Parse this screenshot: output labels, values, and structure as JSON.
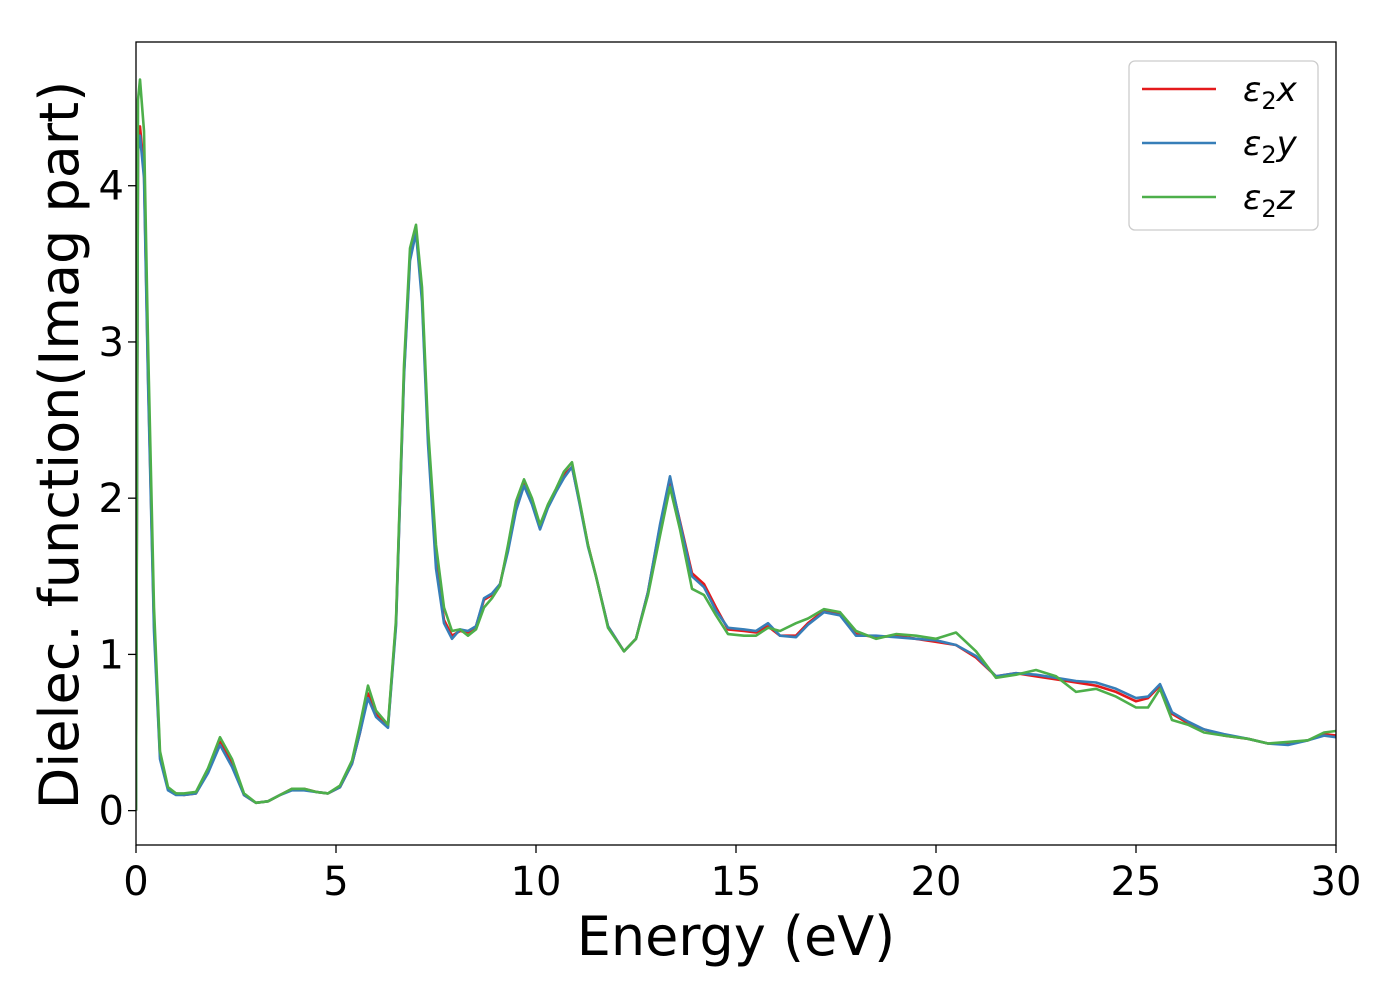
{
  "chart_data": {
    "type": "line",
    "xlabel": "Energy (eV)",
    "ylabel": "Dielec. function(Imag part)",
    "xlim": [
      0,
      30
    ],
    "ylim": [
      -0.22,
      4.92
    ],
    "xticks": [
      0,
      5,
      10,
      15,
      20,
      25,
      30
    ],
    "yticks": [
      0,
      1,
      2,
      3,
      4
    ],
    "legend_position": "top-right",
    "grid": false,
    "series": [
      {
        "name": "ε2x",
        "legend_main": "ε",
        "legend_sub": "2",
        "legend_tail": "x",
        "color": "#e41a1c",
        "x": [
          0,
          0.05,
          0.1,
          0.2,
          0.3,
          0.45,
          0.6,
          0.8,
          1.0,
          1.2,
          1.5,
          1.8,
          2.1,
          2.4,
          2.7,
          3.0,
          3.3,
          3.6,
          3.9,
          4.2,
          4.5,
          4.8,
          5.1,
          5.4,
          5.6,
          5.8,
          6.0,
          6.3,
          6.5,
          6.7,
          6.85,
          7.0,
          7.15,
          7.3,
          7.5,
          7.7,
          7.9,
          8.1,
          8.3,
          8.5,
          8.7,
          8.9,
          9.1,
          9.3,
          9.5,
          9.7,
          9.9,
          10.1,
          10.3,
          10.5,
          10.7,
          10.9,
          11.1,
          11.3,
          11.5,
          11.8,
          12.2,
          12.5,
          12.8,
          13.1,
          13.35,
          13.6,
          13.9,
          14.2,
          14.5,
          14.8,
          15.2,
          15.5,
          15.8,
          16.1,
          16.5,
          16.8,
          17.2,
          17.6,
          18.0,
          18.5,
          19.0,
          19.5,
          20.0,
          20.5,
          21.0,
          21.5,
          22.0,
          22.5,
          23.0,
          23.5,
          24.0,
          24.5,
          25.0,
          25.3,
          25.6,
          25.9,
          26.3,
          26.7,
          27.2,
          27.8,
          28.3,
          28.8,
          29.3,
          29.7,
          30.0
        ],
        "y": [
          0,
          4.3,
          4.38,
          4.1,
          2.8,
          1.2,
          0.35,
          0.14,
          0.11,
          0.1,
          0.11,
          0.25,
          0.44,
          0.3,
          0.1,
          0.05,
          0.06,
          0.1,
          0.14,
          0.14,
          0.12,
          0.11,
          0.15,
          0.3,
          0.5,
          0.75,
          0.62,
          0.54,
          1.2,
          2.8,
          3.55,
          3.72,
          3.3,
          2.4,
          1.6,
          1.22,
          1.12,
          1.15,
          1.14,
          1.18,
          1.35,
          1.38,
          1.45,
          1.68,
          1.95,
          2.1,
          1.98,
          1.82,
          1.95,
          2.05,
          2.15,
          2.2,
          1.96,
          1.7,
          1.5,
          1.18,
          1.02,
          1.1,
          1.4,
          1.82,
          2.12,
          1.85,
          1.52,
          1.45,
          1.3,
          1.16,
          1.15,
          1.14,
          1.18,
          1.12,
          1.12,
          1.2,
          1.28,
          1.26,
          1.13,
          1.11,
          1.12,
          1.1,
          1.08,
          1.06,
          0.98,
          0.86,
          0.88,
          0.86,
          0.84,
          0.82,
          0.8,
          0.76,
          0.7,
          0.72,
          0.8,
          0.62,
          0.56,
          0.52,
          0.48,
          0.46,
          0.43,
          0.43,
          0.45,
          0.49,
          0.48
        ]
      },
      {
        "name": "ε2y",
        "legend_main": "ε",
        "legend_sub": "2",
        "legend_tail": "y",
        "color": "#377eb8",
        "x": [
          0,
          0.05,
          0.1,
          0.2,
          0.3,
          0.45,
          0.6,
          0.8,
          1.0,
          1.2,
          1.5,
          1.8,
          2.1,
          2.4,
          2.7,
          3.0,
          3.3,
          3.6,
          3.9,
          4.2,
          4.5,
          4.8,
          5.1,
          5.4,
          5.6,
          5.8,
          6.0,
          6.3,
          6.5,
          6.7,
          6.85,
          7.0,
          7.15,
          7.3,
          7.5,
          7.7,
          7.9,
          8.1,
          8.3,
          8.5,
          8.7,
          8.9,
          9.1,
          9.3,
          9.5,
          9.7,
          9.9,
          10.1,
          10.3,
          10.5,
          10.7,
          10.9,
          11.1,
          11.3,
          11.5,
          11.8,
          12.2,
          12.5,
          12.8,
          13.1,
          13.35,
          13.6,
          13.9,
          14.2,
          14.5,
          14.8,
          15.2,
          15.5,
          15.8,
          16.1,
          16.5,
          16.8,
          17.2,
          17.6,
          18.0,
          18.5,
          19.0,
          19.5,
          20.0,
          20.5,
          21.0,
          21.5,
          22.0,
          22.5,
          23.0,
          23.5,
          24.0,
          24.5,
          25.0,
          25.3,
          25.6,
          25.9,
          26.3,
          26.7,
          27.2,
          27.8,
          28.3,
          28.8,
          29.3,
          29.7,
          30.0
        ],
        "y": [
          0,
          4.22,
          4.32,
          4.05,
          2.75,
          1.15,
          0.33,
          0.13,
          0.1,
          0.1,
          0.11,
          0.24,
          0.42,
          0.28,
          0.1,
          0.05,
          0.06,
          0.1,
          0.13,
          0.13,
          0.12,
          0.11,
          0.15,
          0.3,
          0.5,
          0.72,
          0.6,
          0.53,
          1.18,
          2.78,
          3.52,
          3.7,
          3.26,
          2.35,
          1.55,
          1.2,
          1.1,
          1.16,
          1.15,
          1.18,
          1.36,
          1.39,
          1.45,
          1.66,
          1.92,
          2.08,
          1.96,
          1.8,
          1.94,
          2.04,
          2.13,
          2.2,
          1.95,
          1.69,
          1.5,
          1.18,
          1.02,
          1.1,
          1.4,
          1.83,
          2.14,
          1.84,
          1.5,
          1.43,
          1.28,
          1.17,
          1.16,
          1.15,
          1.2,
          1.12,
          1.11,
          1.19,
          1.27,
          1.25,
          1.12,
          1.12,
          1.11,
          1.1,
          1.09,
          1.06,
          0.99,
          0.86,
          0.88,
          0.87,
          0.85,
          0.83,
          0.82,
          0.78,
          0.72,
          0.73,
          0.81,
          0.63,
          0.57,
          0.52,
          0.49,
          0.46,
          0.43,
          0.42,
          0.45,
          0.48,
          0.47
        ]
      },
      {
        "name": "ε2z",
        "legend_main": "ε",
        "legend_sub": "2",
        "legend_tail": "z",
        "color": "#4daf4a",
        "x": [
          0,
          0.05,
          0.1,
          0.2,
          0.3,
          0.45,
          0.6,
          0.8,
          1.0,
          1.2,
          1.5,
          1.8,
          2.1,
          2.4,
          2.7,
          3.0,
          3.3,
          3.6,
          3.9,
          4.2,
          4.5,
          4.8,
          5.1,
          5.4,
          5.6,
          5.8,
          6.0,
          6.3,
          6.5,
          6.7,
          6.85,
          7.0,
          7.15,
          7.3,
          7.5,
          7.7,
          7.9,
          8.1,
          8.3,
          8.5,
          8.7,
          8.9,
          9.1,
          9.3,
          9.5,
          9.7,
          9.9,
          10.1,
          10.3,
          10.5,
          10.7,
          10.9,
          11.1,
          11.3,
          11.5,
          11.8,
          12.2,
          12.5,
          12.8,
          13.1,
          13.35,
          13.6,
          13.9,
          14.2,
          14.5,
          14.8,
          15.2,
          15.5,
          15.8,
          16.1,
          16.5,
          16.8,
          17.2,
          17.6,
          18.0,
          18.5,
          19.0,
          19.5,
          20.0,
          20.5,
          21.0,
          21.5,
          22.0,
          22.5,
          23.0,
          23.5,
          24.0,
          24.5,
          25.0,
          25.3,
          25.6,
          25.9,
          26.3,
          26.7,
          27.2,
          27.8,
          28.3,
          28.8,
          29.3,
          29.7,
          30.0
        ],
        "y": [
          0,
          4.55,
          4.68,
          4.35,
          3.0,
          1.3,
          0.38,
          0.15,
          0.11,
          0.11,
          0.12,
          0.27,
          0.47,
          0.33,
          0.11,
          0.05,
          0.06,
          0.1,
          0.14,
          0.14,
          0.12,
          0.11,
          0.16,
          0.32,
          0.55,
          0.8,
          0.64,
          0.55,
          1.22,
          2.85,
          3.6,
          3.75,
          3.35,
          2.45,
          1.7,
          1.3,
          1.15,
          1.16,
          1.12,
          1.16,
          1.3,
          1.36,
          1.44,
          1.7,
          1.98,
          2.12,
          2.0,
          1.83,
          1.96,
          2.06,
          2.17,
          2.23,
          1.97,
          1.7,
          1.5,
          1.17,
          1.02,
          1.1,
          1.38,
          1.76,
          2.07,
          1.8,
          1.42,
          1.38,
          1.25,
          1.13,
          1.12,
          1.12,
          1.17,
          1.15,
          1.2,
          1.23,
          1.29,
          1.27,
          1.15,
          1.1,
          1.13,
          1.12,
          1.1,
          1.14,
          1.02,
          0.85,
          0.87,
          0.9,
          0.86,
          0.76,
          0.78,
          0.73,
          0.66,
          0.66,
          0.78,
          0.58,
          0.55,
          0.5,
          0.48,
          0.46,
          0.43,
          0.44,
          0.45,
          0.5,
          0.51
        ]
      }
    ]
  }
}
